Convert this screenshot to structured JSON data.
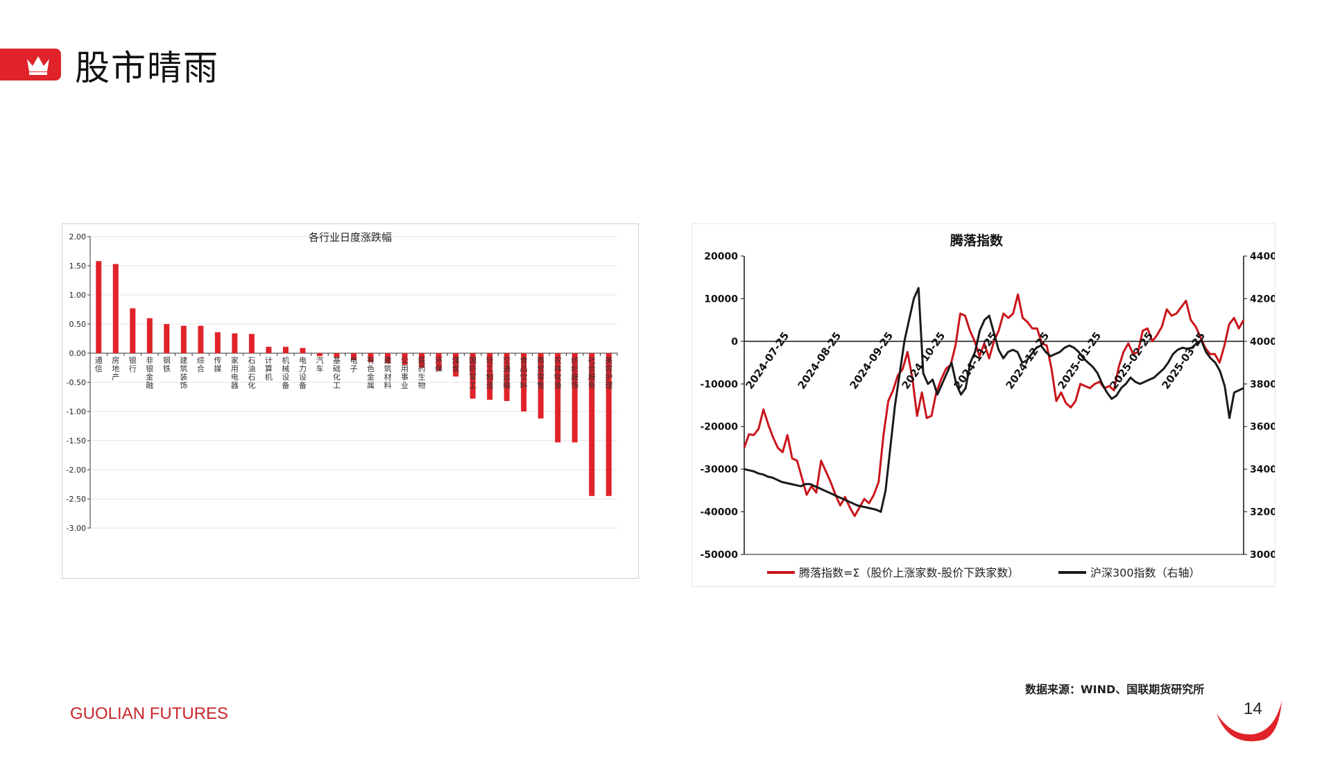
{
  "page": {
    "title": "股市晴雨",
    "source": "数据来源：WIND、国联期货研究所",
    "brand_main": "GUOLIAN",
    "brand_sub": "FUTURES",
    "page_number": "14",
    "accent": "#e0232a"
  },
  "chart_data": [
    {
      "type": "bar",
      "title": "各行业日度涨跌幅",
      "ylim": [
        -3.0,
        2.0
      ],
      "yticks": [
        "2.00",
        "1.50",
        "1.00",
        "0.50",
        "0.00",
        "-0.50",
        "-1.00",
        "-1.50",
        "-2.00",
        "-2.50",
        "-3.00"
      ],
      "grid": true,
      "categories": [
        "通信",
        "房地产",
        "银行",
        "非银金融",
        "钢铁",
        "建筑装饰",
        "综合",
        "传媒",
        "家用电器",
        "石油石化",
        "计算机",
        "机械设备",
        "电力设备",
        "汽车",
        "基础化工",
        "电子",
        "有色金属",
        "建筑材料",
        "公用事业",
        "医药生物",
        "环保",
        "煤炭",
        "国防军工",
        "轻工制造",
        "交通运输",
        "食品饮料",
        "商贸零售",
        "农林牧渔",
        "纺织服饰",
        "社会服务",
        "美容护理"
      ],
      "values": [
        1.58,
        1.53,
        0.77,
        0.6,
        0.5,
        0.47,
        0.47,
        0.36,
        0.34,
        0.33,
        0.11,
        0.11,
        0.09,
        -0.05,
        -0.08,
        -0.12,
        -0.15,
        -0.17,
        -0.2,
        -0.25,
        -0.3,
        -0.4,
        -0.78,
        -0.8,
        -0.82,
        -1.0,
        -1.12,
        -1.53,
        -1.53,
        -2.45,
        -2.45
      ],
      "color": "#e0232a"
    },
    {
      "type": "line",
      "title": "腾落指数",
      "x_ticks": [
        "2024-07-25",
        "2024-08-25",
        "2024-09-25",
        "2024-10-25",
        "2024-11-25",
        "2024-12-25",
        "2025-01-25",
        "2025-02-25",
        "2025-03-25"
      ],
      "y_left": {
        "ylim": [
          -50000,
          20000
        ],
        "ticks": [
          "20000",
          "10000",
          "0",
          "-10000",
          "-20000",
          "-30000",
          "-40000",
          "-50000"
        ]
      },
      "y_right": {
        "ylim": [
          3000,
          4400
        ],
        "ticks": [
          "4400",
          "4200",
          "4000",
          "3800",
          "3600",
          "3400",
          "3200",
          "3000"
        ]
      },
      "grid": false,
      "legend_position": "bottom",
      "series": [
        {
          "name": "腾落指数=Σ（股价上涨家数-股价下跌家数）",
          "axis": "left",
          "color": "#c8151b",
          "values": [
            -25000,
            -21800,
            -22000,
            -20500,
            -16000,
            -19500,
            -22500,
            -25000,
            -26000,
            -22000,
            -27500,
            -28000,
            -32000,
            -36000,
            -34000,
            -35500,
            -28000,
            -30500,
            -33000,
            -36000,
            -38500,
            -36500,
            -39000,
            -41000,
            -39000,
            -37000,
            -38000,
            -36000,
            -33000,
            -22000,
            -14000,
            -11500,
            -8000,
            -6500,
            -2500,
            -8500,
            -17500,
            -12000,
            -18000,
            -17500,
            -12000,
            -9000,
            -6500,
            -5500,
            -1000,
            6500,
            6000,
            2500,
            0,
            -3500,
            -500,
            -4000,
            0,
            2500,
            6500,
            5500,
            6500,
            11000,
            5500,
            4500,
            3000,
            3000,
            -500,
            -1000,
            -6500,
            -14000,
            -12000,
            -14500,
            -15500,
            -14000,
            -10000,
            -10500,
            -11000,
            -10000,
            -9500,
            -11000,
            -10500,
            -11500,
            -6000,
            -2500,
            -500,
            -3000,
            -2500,
            2500,
            3000,
            0,
            1500,
            3500,
            7500,
            6000,
            6500,
            8000,
            9500,
            5000,
            3500,
            1000,
            -1500,
            -3000,
            -3000,
            -5000,
            -1000,
            4000,
            5500,
            3000,
            5000
          ],
          "point_count": 105
        },
        {
          "name": "沪深300指数（右轴）",
          "axis": "right",
          "color": "#1a1a1a",
          "values": [
            3400,
            3395,
            3390,
            3380,
            3375,
            3365,
            3360,
            3350,
            3340,
            3335,
            3330,
            3325,
            3320,
            3330,
            3330,
            3320,
            3310,
            3300,
            3290,
            3280,
            3270,
            3260,
            3250,
            3240,
            3230,
            3225,
            3220,
            3215,
            3210,
            3200,
            3300,
            3500,
            3700,
            3850,
            4000,
            4100,
            4200,
            4250,
            3850,
            3800,
            3820,
            3750,
            3800,
            3850,
            3900,
            3800,
            3750,
            3780,
            3900,
            3950,
            4050,
            4100,
            4120,
            4040,
            3960,
            3920,
            3950,
            3960,
            3950,
            3900,
            3910,
            3940,
            3970,
            3980,
            3950,
            3930,
            3940,
            3950,
            3970,
            3980,
            3970,
            3950,
            3920,
            3900,
            3880,
            3850,
            3800,
            3760,
            3730,
            3745,
            3780,
            3800,
            3830,
            3810,
            3800,
            3810,
            3820,
            3830,
            3850,
            3870,
            3900,
            3940,
            3960,
            3970,
            3965,
            3970,
            3990,
            4005,
            3950,
            3920,
            3900,
            3860,
            3790,
            3640,
            3760,
            3770,
            3780
          ],
          "point_count": 107
        }
      ]
    }
  ]
}
